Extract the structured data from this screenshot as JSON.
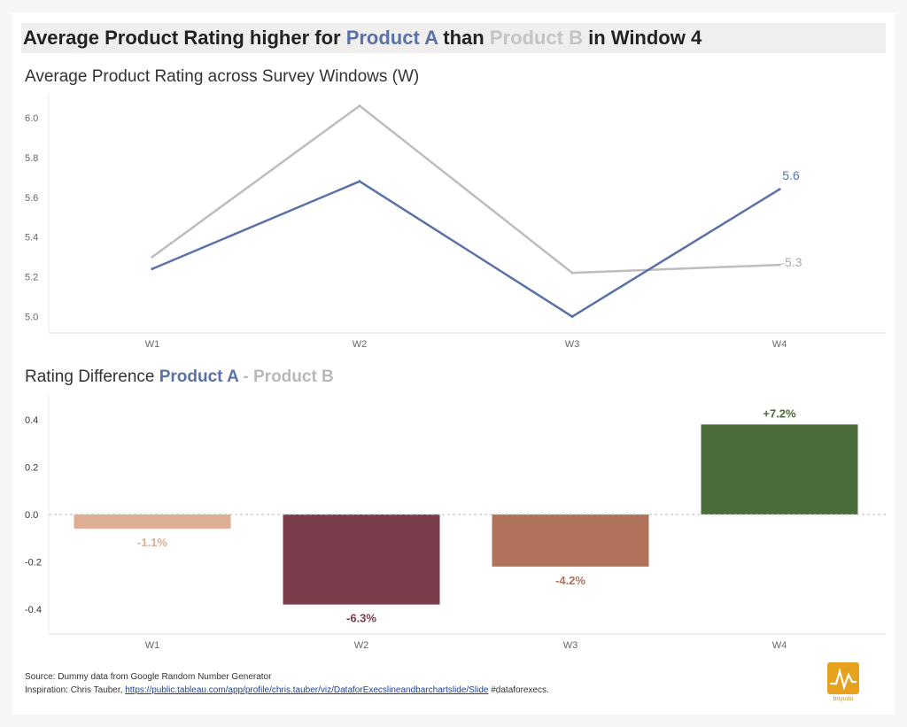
{
  "title": {
    "part1": "Average Product Rating higher for ",
    "product_a": "Product A",
    "part2": " than ",
    "product_b": "Product B",
    "part3": " in Window 4"
  },
  "line_subtitle": "Average Product Rating across Survey Windows (W)",
  "bar_subtitle": {
    "prefix": "Rating Difference ",
    "product_a": "Product A",
    "sep": " - ",
    "product_b": "Product B"
  },
  "colors": {
    "product_a": "#5a72a8",
    "product_b": "#bdbdbd",
    "w1": "#deae94",
    "w2": "#7a3b4a",
    "w3": "#b07259",
    "w4": "#4c6b3a"
  },
  "chart_data": [
    {
      "type": "line",
      "title": "Average Product Rating across Survey Windows (W)",
      "categories": [
        "W1",
        "W2",
        "W3",
        "W4"
      ],
      "series": [
        {
          "name": "Product A",
          "values": [
            5.24,
            5.68,
            5.0,
            5.64
          ],
          "end_label": "5.6",
          "color": "#5a72a8"
        },
        {
          "name": "Product B",
          "values": [
            5.3,
            6.06,
            5.22,
            5.26
          ],
          "end_label": "5.3",
          "color": "#bdbdbd"
        }
      ],
      "yticks": [
        "6.0",
        "5.8",
        "5.6",
        "5.4",
        "5.2",
        "5.0"
      ],
      "ylim": [
        4.98,
        6.12
      ],
      "grid": false
    },
    {
      "type": "bar",
      "title": "Rating Difference Product A - Product B",
      "categories": [
        "W1",
        "W2",
        "W3",
        "W4"
      ],
      "values": [
        -0.06,
        -0.38,
        -0.22,
        0.38
      ],
      "labels": [
        "-1.1%",
        "-6.3%",
        "-4.2%",
        "+7.2%"
      ],
      "colors": [
        "#deae94",
        "#7a3b4a",
        "#b07259",
        "#4c6b3a"
      ],
      "yticks": [
        "0.4",
        "0.2",
        "0.0",
        "-0.2",
        "-0.4"
      ],
      "ylim": [
        -0.49,
        0.47
      ]
    }
  ],
  "footer": {
    "source": "Source: Dummy data from Google Random Number Generator",
    "inspiration_prefix": "Inspiration: Chris Tauber, ",
    "inspiration_link": "https://public.tableau.com/app/profile/chris.tauber/viz/DataforExecslineandbarchartslide/Slide",
    "inspiration_suffix": " #dataforexecs."
  },
  "logo_text": "boyudu"
}
